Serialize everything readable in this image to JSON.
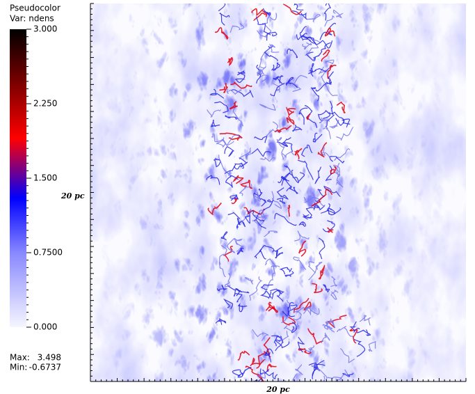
{
  "chart_data": {
    "type": "pseudocolor",
    "title": "Pseudocolor",
    "subtitle": "Var: ndens",
    "xlabel": "20  pc",
    "ylabel": "20  pc",
    "clim": [
      0,
      3
    ],
    "cticks": [
      {
        "value": 3,
        "label": "3.000"
      },
      {
        "value": 2.25,
        "label": "2.250"
      },
      {
        "value": 1.5,
        "label": "1.500"
      },
      {
        "value": 0.75,
        "label": "0.7500"
      },
      {
        "value": 0,
        "label": "0.000"
      }
    ],
    "colormap": [
      {
        "value": 0,
        "color": "#f6f6ff"
      },
      {
        "value": 0.75,
        "color": "#8888ff"
      },
      {
        "value": 1.3,
        "color": "#0000ff"
      },
      {
        "value": 1.9,
        "color": "#ff0000"
      },
      {
        "value": 2.4,
        "color": "#880000"
      },
      {
        "value": 3,
        "color": "#000000"
      }
    ],
    "stats": [
      {
        "label": "Max:",
        "value": 3.498
      },
      {
        "label": "Min:",
        "value": -0.6737
      }
    ]
  }
}
